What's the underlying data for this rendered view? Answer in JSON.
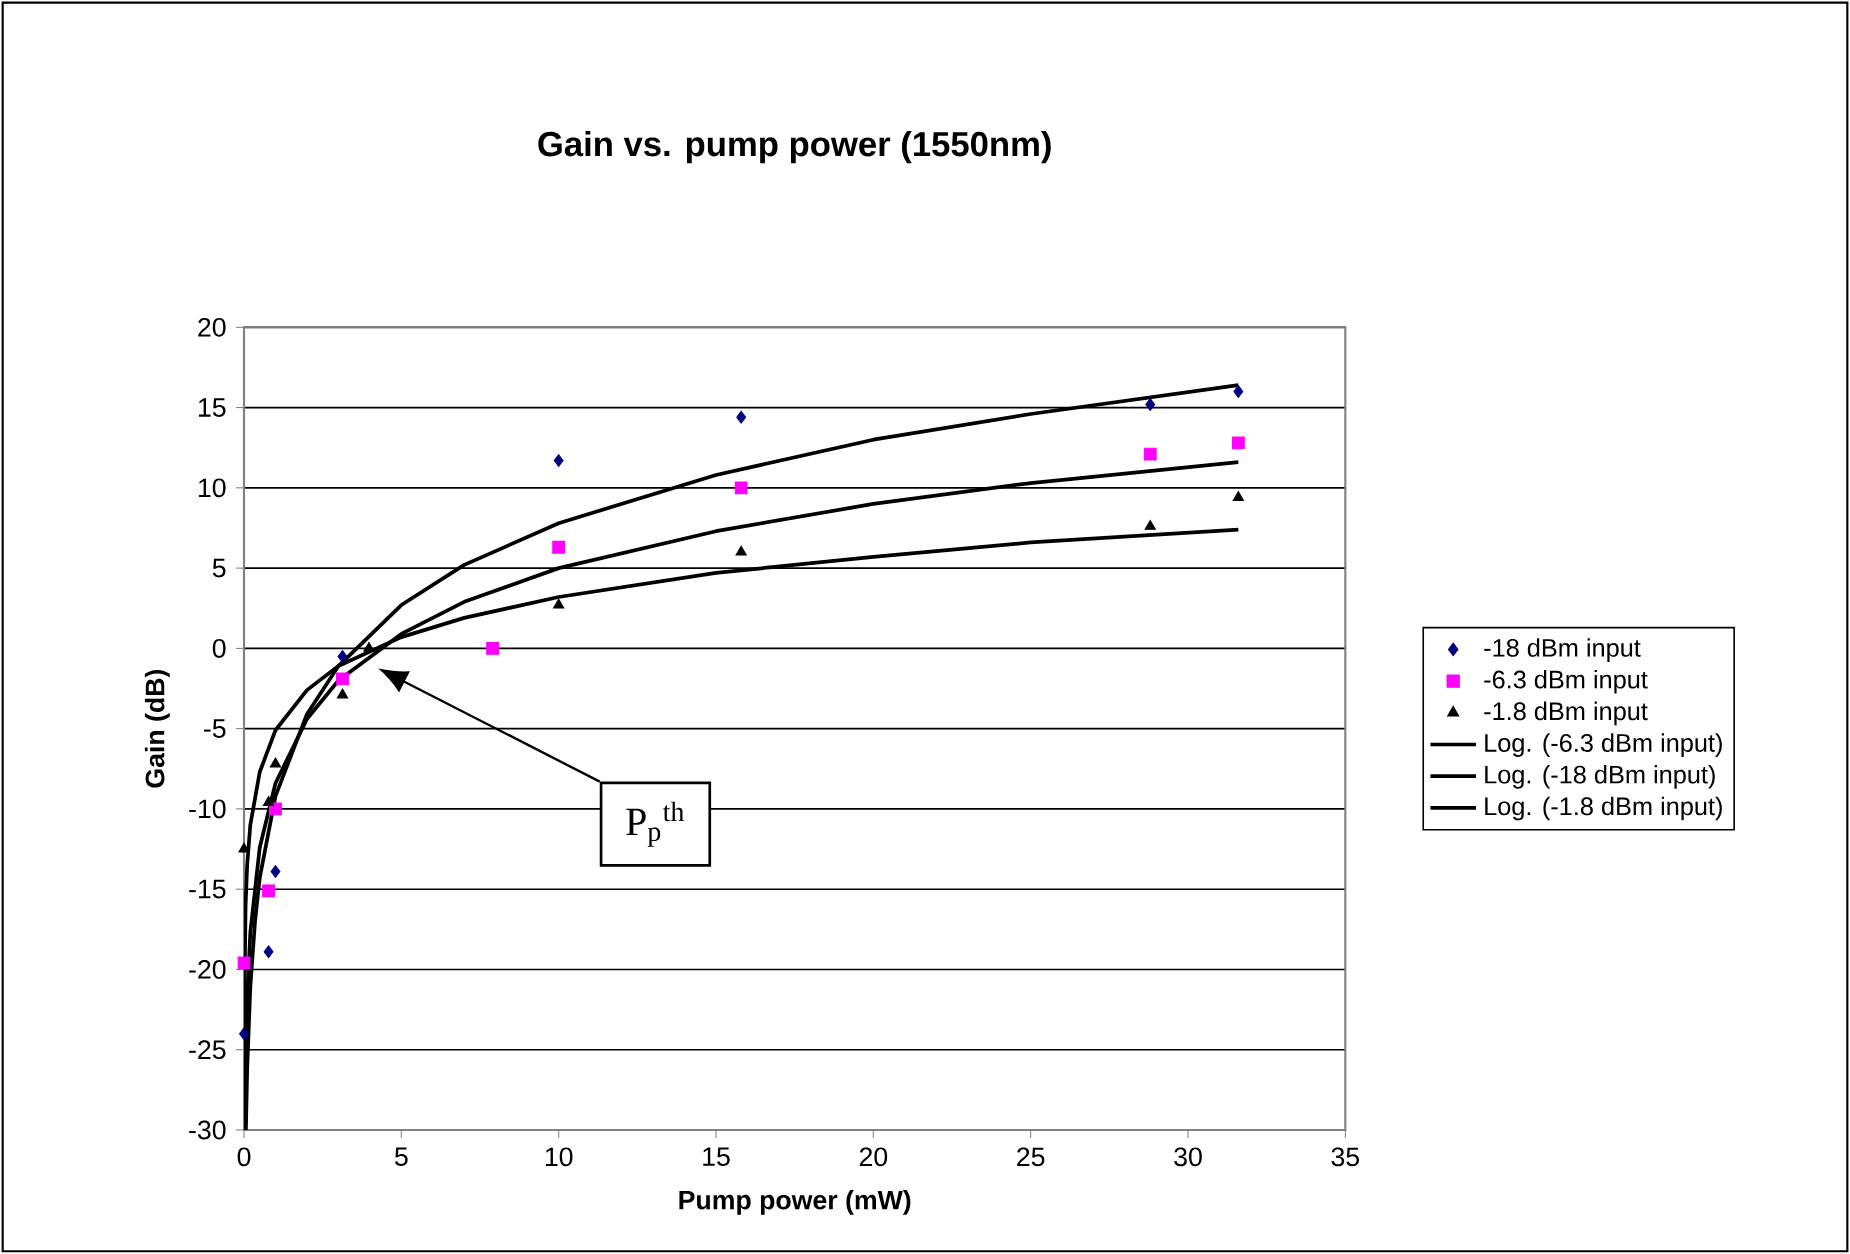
{
  "chart_data": {
    "type": "scatter",
    "title": "Gain vs. pump power (1550nm)",
    "xlabel": "Pump power (mW)",
    "ylabel": "Gain (dB)",
    "xlim": [
      0,
      35
    ],
    "xticks": [
      0,
      5,
      10,
      15,
      20,
      25,
      30,
      35
    ],
    "ylim": [
      -30,
      20
    ],
    "yticks": [
      -30,
      -25,
      -20,
      -15,
      -10,
      -5,
      0,
      5,
      10,
      15,
      20
    ],
    "grid": "y",
    "legend": "right",
    "annotations": [
      "P$_{p}$$^{th}$"
    ],
    "series": [
      {
        "name": "-18 dBm input",
        "color": "#000080",
        "marker": "diamond",
        "x": [
          0,
          0.78,
          1.0,
          3.13,
          10,
          15.8,
          28.8,
          31.6
        ],
        "values": [
          -24,
          -18.9,
          -13.9,
          -0.5,
          11.7,
          14.4,
          15.2,
          16
        ]
      },
      {
        "name": "-6.3 dBm input",
        "color": "#ff00ff",
        "marker": "square",
        "x": [
          0,
          0.78,
          1.0,
          3.13,
          7.9,
          10,
          15.8,
          28.8,
          31.6
        ],
        "values": [
          -19.6,
          -15.1,
          -10,
          -1.9,
          0,
          6.3,
          10,
          12.1,
          12.8
        ]
      },
      {
        "name": "-1.8 dBm input",
        "color": "#000000",
        "marker": "triangle",
        "x": [
          0,
          0.78,
          1.0,
          3.13,
          3.97,
          10,
          15.8,
          28.8,
          31.6
        ],
        "values": [
          -12.5,
          -9.6,
          -7.2,
          -2.9,
          0,
          2.7,
          6,
          7.6,
          9.4
        ]
      },
      {
        "name": "Log. (-6.3 dBm input)",
        "type": "line",
        "color": "#000000",
        "marker": "none",
        "x": [
          0.024,
          0.05,
          0.1,
          0.2,
          0.5,
          1,
          2,
          3,
          5,
          7,
          10,
          15,
          20,
          25,
          31.6
        ],
        "values": [
          -30,
          -25.8,
          -21.8,
          -17.7,
          -12.4,
          -8.4,
          -4.4,
          -2.0,
          0.9,
          2.9,
          5.0,
          7.3,
          9.0,
          10.3,
          11.6
        ]
      },
      {
        "name": "Log. (-18 dBm input)",
        "type": "line",
        "color": "#000000",
        "marker": "none",
        "x": [
          0.06,
          0.1,
          0.2,
          0.35,
          0.5,
          1,
          2,
          3,
          5,
          7,
          10,
          15,
          20,
          25,
          31.6
        ],
        "values": [
          -30,
          -26.2,
          -21.1,
          -17.0,
          -14.3,
          -9.2,
          -4.1,
          -1.1,
          2.7,
          5.2,
          7.8,
          10.8,
          13.0,
          14.6,
          16.4
        ]
      },
      {
        "name": "Log. (-1.8 dBm input)",
        "type": "line",
        "color": "#000000",
        "marker": "none",
        "x": [
          0.001,
          0.003,
          0.01,
          0.05,
          0.1,
          0.2,
          0.5,
          1,
          2,
          3,
          5,
          7,
          10,
          15,
          20,
          25,
          31.6
        ],
        "values": [
          -30,
          -26.2,
          -21.9,
          -16.0,
          -13.5,
          -11.0,
          -7.7,
          -5.1,
          -2.6,
          -1.1,
          0.7,
          1.9,
          3.2,
          4.7,
          5.7,
          6.6,
          7.4
        ]
      }
    ]
  }
}
